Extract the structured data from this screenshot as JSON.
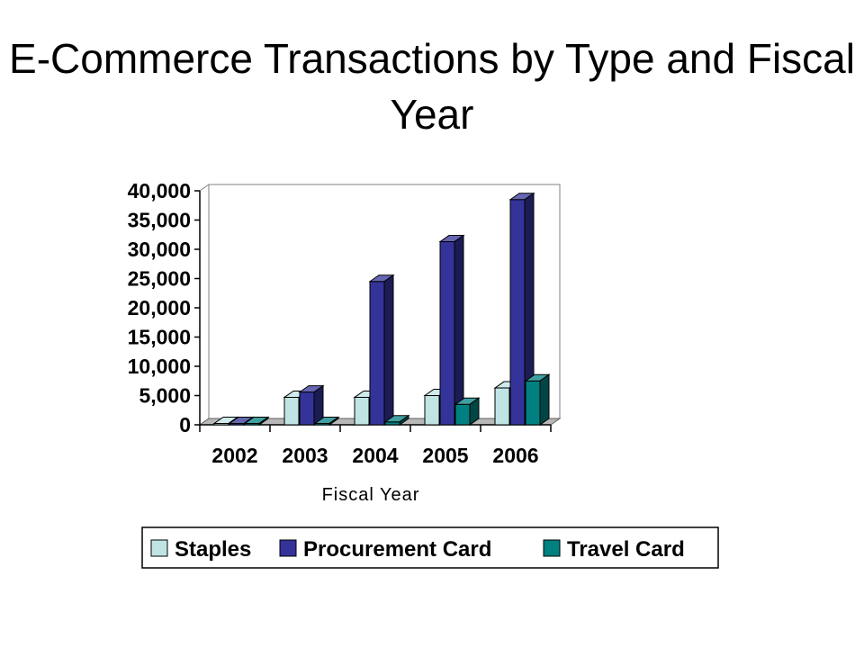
{
  "chart_data": {
    "type": "bar",
    "title": "E-Commerce Transactions by Type and Fiscal Year",
    "xlabel": "Fiscal Year",
    "ylabel": "",
    "categories": [
      "2002",
      "2003",
      "2004",
      "2005",
      "2006"
    ],
    "series": [
      {
        "name": "Staples",
        "color": "#c0e4e4",
        "values": [
          0,
          4700,
          4700,
          5000,
          6300
        ]
      },
      {
        "name": "Procurement Card",
        "color": "#333399",
        "values": [
          0,
          5600,
          24500,
          31300,
          38500
        ]
      },
      {
        "name": "Travel Card",
        "color": "#008080",
        "values": [
          0,
          0,
          500,
          3500,
          7500
        ]
      }
    ],
    "ylim": [
      0,
      40000
    ],
    "yticks": [
      "0",
      "5,000",
      "10,000",
      "15,000",
      "20,000",
      "25,000",
      "30,000",
      "35,000",
      "40,000"
    ],
    "grid": false,
    "legend_position": "bottom"
  }
}
